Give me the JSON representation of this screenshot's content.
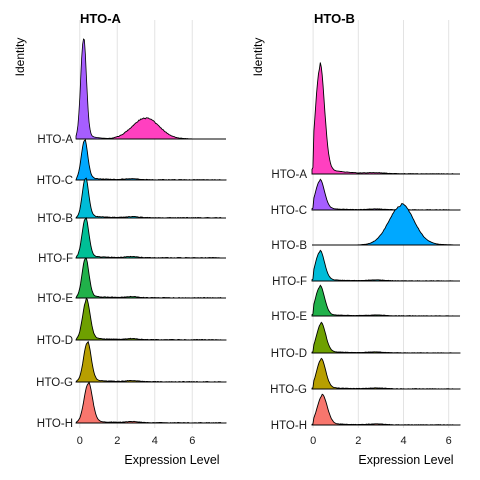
{
  "chart_data": [
    {
      "type": "ridgeline",
      "title": "HTO-A",
      "xlabel": "Expression Level",
      "ylabel": "Identity",
      "xlim": [
        -0.2,
        7.8
      ],
      "x_ticks": [
        0,
        2,
        4,
        6
      ],
      "grid": "vertical",
      "series": [
        {
          "name": "HTO-A",
          "color": "#FF40C0",
          "mode": 3.5,
          "spread": 0.7,
          "peak_height": 0.48,
          "background_peak": {
            "mode": 0.2,
            "spread": 0.15,
            "height": 1.0,
            "color": "#A65EFF"
          }
        },
        {
          "name": "HTO-C",
          "color": "#00A8FF",
          "mode": 0.25,
          "spread": 0.17,
          "peak_height": 0.93
        },
        {
          "name": "HTO-B",
          "color": "#00BCD8",
          "mode": 0.3,
          "spread": 0.17,
          "peak_height": 0.93
        },
        {
          "name": "HTO-F",
          "color": "#00BF96",
          "mode": 0.3,
          "spread": 0.18,
          "peak_height": 0.93
        },
        {
          "name": "HTO-E",
          "color": "#21B14A",
          "mode": 0.3,
          "spread": 0.18,
          "peak_height": 0.93
        },
        {
          "name": "HTO-D",
          "color": "#6EA000",
          "mode": 0.35,
          "spread": 0.2,
          "peak_height": 0.93
        },
        {
          "name": "HTO-G",
          "color": "#B79F00",
          "mode": 0.4,
          "spread": 0.2,
          "peak_height": 0.93
        },
        {
          "name": "HTO-H",
          "color": "#F8766D",
          "mode": 0.45,
          "spread": 0.22,
          "peak_height": 0.93
        }
      ]
    },
    {
      "type": "ridgeline",
      "title": "HTO-B",
      "xlabel": "Expression Level",
      "ylabel": "Identity",
      "xlim": [
        -0.05,
        6.5
      ],
      "x_ticks": [
        0,
        2,
        4,
        6
      ],
      "grid": "vertical",
      "series": [
        {
          "name": "HTO-A",
          "color": "#FF40C0",
          "mode": 0.3,
          "spread": 0.2,
          "peak_height": 3.4
        },
        {
          "name": "HTO-C",
          "color": "#A65EFF",
          "mode": 0.3,
          "spread": 0.2,
          "peak_height": 0.93
        },
        {
          "name": "HTO-B",
          "color": "#00A8FF",
          "mode": 3.9,
          "spread": 0.55,
          "peak_height": 1.25
        },
        {
          "name": "HTO-F",
          "color": "#00BCD8",
          "mode": 0.3,
          "spread": 0.2,
          "peak_height": 0.93
        },
        {
          "name": "HTO-E",
          "color": "#21B14A",
          "mode": 0.3,
          "spread": 0.2,
          "peak_height": 0.93
        },
        {
          "name": "HTO-D",
          "color": "#6EA000",
          "mode": 0.35,
          "spread": 0.2,
          "peak_height": 0.93
        },
        {
          "name": "HTO-G",
          "color": "#B79F00",
          "mode": 0.35,
          "spread": 0.2,
          "peak_height": 0.93
        },
        {
          "name": "HTO-H",
          "color": "#F8766D",
          "mode": 0.4,
          "spread": 0.22,
          "peak_height": 0.93
        }
      ]
    }
  ]
}
